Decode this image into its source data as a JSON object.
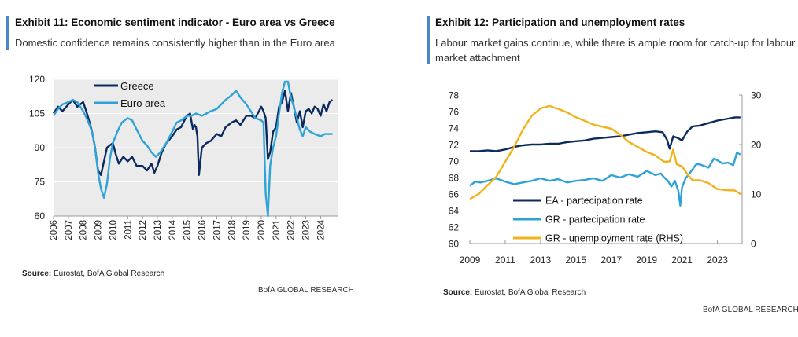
{
  "charts": [
    {
      "title": "Exhibit 11: Economic sentiment indicator - Euro area vs Greece",
      "subtitle": "Domestic confidence remains consistently higher than in the Euro area",
      "source_label": "Source:",
      "source_text": "Eurostat, BofA Global Research",
      "brand": "BofA GLOBAL RESEARCH"
    },
    {
      "title": "Exhibit 12: Participation and unemployment rates",
      "subtitle": "Labour market gains continue, while there is ample room for catch-up for labour market attachment",
      "source_label": "Source:",
      "source_text": "Eurostat, BofA Global Research",
      "brand": "BofA GLOBAL RESEARCH"
    }
  ],
  "chart_data": [
    {
      "type": "line",
      "title": "Exhibit 11: Economic sentiment indicator - Euro area vs Greece",
      "xlabel": "",
      "ylabel": "",
      "ylim": [
        60,
        120
      ],
      "yticks": [
        60,
        75,
        90,
        105,
        120
      ],
      "xticks": [
        "2006",
        "2007",
        "2008",
        "2009",
        "2010",
        "2011",
        "2012",
        "2013",
        "2014",
        "2015",
        "2016",
        "2017",
        "2018",
        "2019",
        "2020",
        "2021",
        "2022",
        "2023",
        "2024"
      ],
      "grid": true,
      "legend": "top-left",
      "colors": {
        "Greece": "#0d2a5e",
        "Euro area": "#2ea3d8"
      },
      "series": [
        {
          "name": "Greece",
          "x": [
            2006.0,
            2006.3,
            2006.6,
            2007.0,
            2007.3,
            2007.6,
            2008.0,
            2008.3,
            2008.6,
            2008.8,
            2009.0,
            2009.2,
            2009.4,
            2009.6,
            2009.8,
            2010.0,
            2010.2,
            2010.4,
            2010.7,
            2011.0,
            2011.3,
            2011.6,
            2012.0,
            2012.3,
            2012.6,
            2012.8,
            2013.0,
            2013.3,
            2013.6,
            2014.0,
            2014.3,
            2014.6,
            2014.9,
            2015.0,
            2015.2,
            2015.4,
            2015.5,
            2015.6,
            2015.7,
            2015.8,
            2016.0,
            2016.3,
            2016.6,
            2017.0,
            2017.3,
            2017.6,
            2018.0,
            2018.3,
            2018.6,
            2019.0,
            2019.3,
            2019.6,
            2020.0,
            2020.15,
            2020.3,
            2020.45,
            2020.6,
            2020.8,
            2021.0,
            2021.2,
            2021.4,
            2021.6,
            2021.8,
            2022.0,
            2022.2,
            2022.4,
            2022.6,
            2022.8,
            2023.0,
            2023.2,
            2023.4,
            2023.6,
            2023.8,
            2024.0,
            2024.2,
            2024.4,
            2024.6,
            2024.8
          ],
          "values": [
            105,
            108,
            106,
            109,
            111,
            108,
            110,
            104,
            97,
            90,
            80,
            78,
            84,
            90,
            91,
            92,
            87,
            83,
            86,
            84,
            86,
            82,
            82,
            80,
            83,
            79,
            82,
            88,
            92,
            95,
            98,
            99,
            103,
            104,
            105,
            98,
            100,
            99,
            95,
            78,
            90,
            92,
            93,
            96,
            95,
            99,
            101,
            102,
            100,
            104,
            104,
            103,
            108,
            106,
            103,
            85,
            88,
            97,
            99,
            108,
            110,
            115,
            106,
            114,
            108,
            101,
            106,
            99,
            106,
            107,
            105,
            108,
            107,
            104,
            109,
            106,
            110,
            111
          ]
        },
        {
          "name": "Euro area",
          "x": [
            2006.0,
            2006.3,
            2006.6,
            2007.0,
            2007.3,
            2007.6,
            2008.0,
            2008.3,
            2008.6,
            2008.8,
            2009.0,
            2009.2,
            2009.4,
            2009.6,
            2009.8,
            2010.0,
            2010.3,
            2010.6,
            2011.0,
            2011.3,
            2011.6,
            2012.0,
            2012.3,
            2012.6,
            2012.9,
            2013.2,
            2013.6,
            2014.0,
            2014.3,
            2014.6,
            2015.0,
            2015.3,
            2015.6,
            2016.0,
            2016.3,
            2016.6,
            2017.0,
            2017.3,
            2017.6,
            2018.0,
            2018.3,
            2018.6,
            2019.0,
            2019.3,
            2019.6,
            2020.0,
            2020.15,
            2020.3,
            2020.45,
            2020.6,
            2020.8,
            2021.0,
            2021.2,
            2021.4,
            2021.6,
            2021.8,
            2022.0,
            2022.2,
            2022.4,
            2022.6,
            2022.8,
            2023.0,
            2023.3,
            2023.6,
            2024.0,
            2024.3,
            2024.6,
            2024.8
          ],
          "values": [
            104,
            107,
            109,
            110,
            111,
            110,
            106,
            102,
            97,
            90,
            79,
            72,
            68,
            74,
            85,
            92,
            97,
            101,
            103,
            102,
            98,
            93,
            91,
            88,
            86,
            88,
            92,
            97,
            101,
            102,
            104,
            104,
            105,
            104,
            105,
            106,
            107,
            109,
            111,
            113,
            115,
            112,
            109,
            106,
            103,
            102,
            101,
            70,
            60,
            82,
            90,
            95,
            105,
            114,
            119,
            119,
            112,
            108,
            103,
            98,
            95,
            99,
            97,
            96,
            95,
            96,
            96,
            96
          ]
        }
      ]
    },
    {
      "type": "line",
      "title": "Exhibit 12: Participation and unemployment rates",
      "xlabel": "",
      "ylabel": "",
      "ylim": [
        60,
        78
      ],
      "y2lim": [
        0,
        30
      ],
      "yticks": [
        60,
        62,
        64,
        66,
        68,
        70,
        72,
        74,
        76,
        78
      ],
      "y2ticks": [
        0,
        10,
        20,
        30
      ],
      "xticks": [
        "2009",
        "2011",
        "2013",
        "2015",
        "2017",
        "2019",
        "2021",
        "2023"
      ],
      "grid": false,
      "legend": "bottom-center",
      "colors": {
        "EA - partecipation rate": "#0d2a5e",
        "GR - partecipation rate": "#2ea3d8",
        "GR - unemployment rate (RHS)": "#f0b31c"
      },
      "series": [
        {
          "name": "EA - partecipation rate",
          "axis": "left",
          "x": [
            2009.0,
            2009.5,
            2010.0,
            2010.5,
            2011.0,
            2011.5,
            2012.0,
            2012.5,
            2013.0,
            2013.5,
            2014.0,
            2014.5,
            2015.0,
            2015.5,
            2016.0,
            2016.5,
            2017.0,
            2017.5,
            2018.0,
            2018.5,
            2019.0,
            2019.5,
            2019.9,
            2020.15,
            2020.3,
            2020.5,
            2020.75,
            2021.0,
            2021.3,
            2021.6,
            2022.0,
            2022.5,
            2023.0,
            2023.5,
            2024.0,
            2024.3
          ],
          "values": [
            71.2,
            71.2,
            71.3,
            71.2,
            71.4,
            71.7,
            71.9,
            72.0,
            72.0,
            72.1,
            72.1,
            72.3,
            72.4,
            72.5,
            72.7,
            72.8,
            72.9,
            73.0,
            73.2,
            73.4,
            73.5,
            73.6,
            73.5,
            72.6,
            71.5,
            73.0,
            72.8,
            72.5,
            73.6,
            74.2,
            74.3,
            74.6,
            74.9,
            75.1,
            75.3,
            75.3
          ]
        },
        {
          "name": "GR - partecipation rate",
          "axis": "left",
          "x": [
            2009.0,
            2009.3,
            2009.6,
            2010.0,
            2010.5,
            2011.0,
            2011.5,
            2012.0,
            2012.5,
            2013.0,
            2013.5,
            2014.0,
            2014.5,
            2015.0,
            2015.5,
            2016.0,
            2016.5,
            2017.0,
            2017.5,
            2018.0,
            2018.5,
            2019.0,
            2019.5,
            2019.8,
            2020.0,
            2020.2,
            2020.4,
            2020.6,
            2020.8,
            2020.9,
            2021.0,
            2021.2,
            2021.5,
            2021.8,
            2022.0,
            2022.5,
            2022.8,
            2023.0,
            2023.3,
            2023.6,
            2023.9,
            2024.1,
            2024.3
          ],
          "values": [
            67.0,
            67.5,
            67.4,
            67.6,
            67.9,
            67.5,
            67.2,
            67.4,
            67.6,
            67.9,
            67.6,
            67.8,
            67.4,
            67.6,
            67.7,
            67.9,
            67.6,
            68.3,
            68.0,
            68.4,
            68.1,
            68.8,
            68.3,
            68.5,
            68.0,
            67.6,
            66.9,
            67.6,
            66.3,
            64.6,
            66.8,
            67.9,
            68.7,
            69.6,
            69.6,
            69.2,
            70.3,
            70.1,
            69.7,
            69.8,
            69.5,
            71.0,
            70.8
          ]
        },
        {
          "name": "GR - unemployment rate (RHS)",
          "axis": "right",
          "x": [
            2009.0,
            2009.5,
            2010.0,
            2010.5,
            2011.0,
            2011.5,
            2012.0,
            2012.5,
            2013.0,
            2013.5,
            2014.0,
            2014.5,
            2015.0,
            2015.5,
            2016.0,
            2016.5,
            2017.0,
            2017.5,
            2018.0,
            2018.5,
            2019.0,
            2019.5,
            2019.8,
            2020.0,
            2020.3,
            2020.5,
            2020.7,
            2021.0,
            2021.3,
            2021.6,
            2022.0,
            2022.5,
            2023.0,
            2023.5,
            2024.0,
            2024.3
          ],
          "values": [
            9.0,
            10.0,
            11.8,
            13.5,
            16.5,
            19.5,
            23.0,
            25.8,
            27.3,
            27.8,
            27.2,
            26.5,
            25.5,
            24.8,
            24.0,
            23.6,
            23.2,
            22.0,
            20.5,
            19.5,
            18.5,
            17.8,
            17.0,
            16.5,
            16.6,
            19.0,
            16.0,
            15.6,
            14.0,
            12.8,
            12.8,
            12.2,
            11.0,
            10.8,
            10.7,
            10.0
          ]
        }
      ]
    }
  ]
}
